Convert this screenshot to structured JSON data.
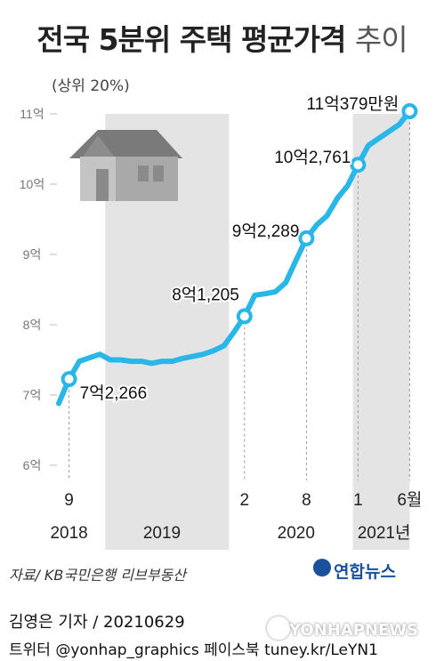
{
  "header": {
    "title_main": "전국 5분위 주택 평균가격",
    "title_light": "추이",
    "subtitle": "(상위 20%)"
  },
  "footer": {
    "source": "자료/ KB국민은행 리브부동산",
    "reporter": "김영은 기자 / 20210629",
    "sns": "트위터 @yonhap_graphics  페이스북 tuney.kr/LeYN1",
    "brand": "연합뉴스",
    "watermark": "YONHAPNEWS"
  },
  "colors": {
    "line": "#29b6e8",
    "band": "#e4e4e4",
    "marker_fill": "#ffffff",
    "grid": "#bbbbbb"
  },
  "chart_data": {
    "type": "line",
    "title": "전국 5분위 주택 평균가격 추이",
    "subtitle": "(상위 20%)",
    "y_unit": "억",
    "ylim": [
      6,
      11.2
    ],
    "y_ticks": [
      {
        "value": 6,
        "label": "6억"
      },
      {
        "value": 7,
        "label": "7억"
      },
      {
        "value": 8,
        "label": "8억"
      },
      {
        "value": 9,
        "label": "9억"
      },
      {
        "value": 10,
        "label": "10억"
      },
      {
        "value": 11,
        "label": "11억"
      }
    ],
    "x_month_labels": [
      "9",
      "2",
      "8",
      "1",
      "6월"
    ],
    "x_year_labels": [
      "2018",
      "2019",
      "2020",
      "2021년"
    ],
    "series": [
      {
        "x": [
          "2018-08",
          "2018-09",
          "2018-10",
          "2018-11",
          "2018-12",
          "2019-01",
          "2019-02",
          "2019-03",
          "2019-04",
          "2019-05",
          "2019-06",
          "2019-07",
          "2019-08",
          "2019-09",
          "2019-10",
          "2019-11",
          "2019-12",
          "2020-01",
          "2020-02",
          "2020-03",
          "2020-04",
          "2020-05",
          "2020-06",
          "2020-07",
          "2020-08",
          "2020-09",
          "2020-10",
          "2020-11",
          "2020-12",
          "2021-01",
          "2021-02",
          "2021-03",
          "2021-04",
          "2021-05",
          "2021-06"
        ],
        "values": [
          6.88,
          7.2266,
          7.48,
          7.53,
          7.58,
          7.5,
          7.5,
          7.48,
          7.48,
          7.45,
          7.48,
          7.48,
          7.52,
          7.55,
          7.58,
          7.63,
          7.7,
          7.9,
          8.1205,
          8.42,
          8.44,
          8.47,
          8.6,
          8.92,
          9.2289,
          9.42,
          9.55,
          9.8,
          9.98,
          10.2761,
          10.55,
          10.65,
          10.75,
          10.85,
          11.0379
        ]
      }
    ],
    "highlights": [
      {
        "x": "2018-09",
        "value": 7.2266,
        "label": "7억2,266"
      },
      {
        "x": "2020-02",
        "value": 8.1205,
        "label": "8억1,205"
      },
      {
        "x": "2020-08",
        "value": 9.2289,
        "label": "9억2,289"
      },
      {
        "x": "2021-01",
        "value": 10.2761,
        "label": "10억2,761"
      },
      {
        "x": "2021-06",
        "value": 11.0379,
        "label": "11억379만원"
      }
    ],
    "shaded_years": [
      "2019",
      "2021"
    ],
    "grid": false
  }
}
